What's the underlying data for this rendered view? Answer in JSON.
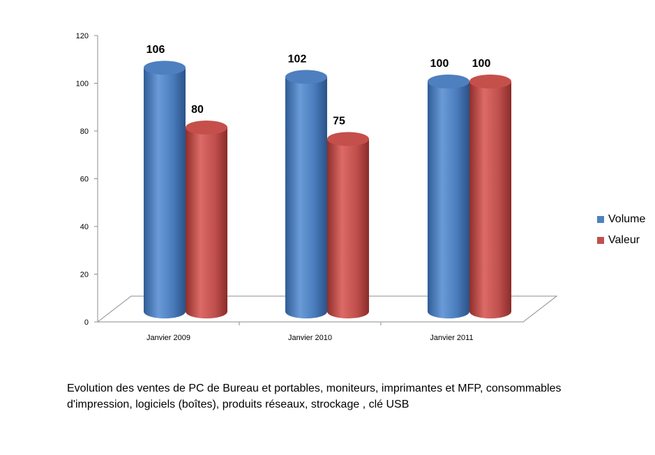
{
  "chart_data": {
    "type": "bar",
    "categories": [
      "Janvier 2009",
      "Janvier 2010",
      "Janvier 2011"
    ],
    "series": [
      {
        "name": "Volume",
        "values": [
          106,
          102,
          100
        ],
        "color": "#4F81BD"
      },
      {
        "name": "Valeur",
        "values": [
          80,
          75,
          100
        ],
        "color": "#C0504D"
      }
    ],
    "yticks": [
      0,
      20,
      40,
      60,
      80,
      100,
      120
    ],
    "ylim": [
      0,
      120
    ],
    "grid": false,
    "legend_position": "right",
    "style": "3d-cylinder"
  },
  "caption": {
    "line1": "Evolution des ventes de  PC de Bureau et portables,  moniteurs, imprimantes et MFP, consommables",
    "line2": "d'impression,  logiciels (boîtes), produits réseaux, strockage , clé USB"
  }
}
